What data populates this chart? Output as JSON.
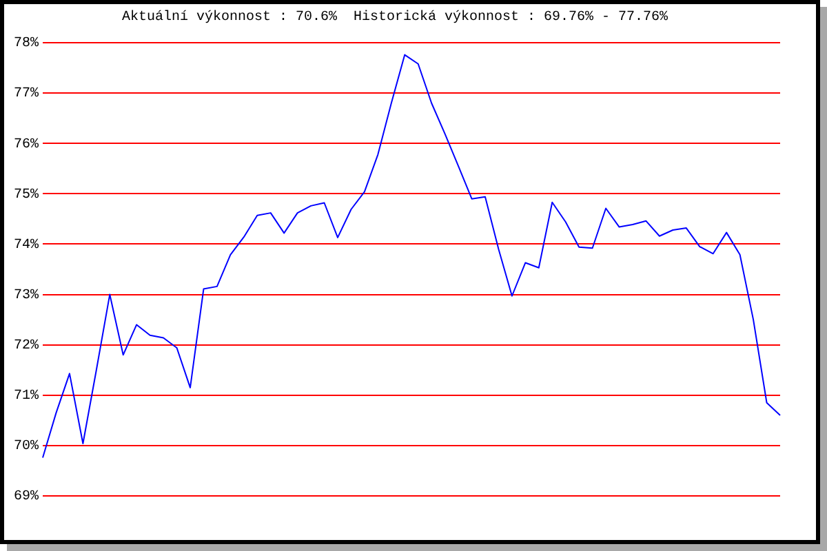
{
  "chart_data": {
    "type": "line",
    "title": "Aktuální výkonnost : 70.6%  Historická výkonnost : 69.76% - 77.76%",
    "categories": [
      null,
      null,
      null,
      null,
      null,
      null,
      null,
      null,
      null,
      null,
      null,
      null,
      null,
      null,
      null,
      null,
      null,
      null,
      null,
      null,
      null,
      null,
      null,
      null,
      null,
      null,
      null,
      null,
      null,
      null,
      null,
      null,
      null,
      null,
      null,
      null,
      null,
      null,
      null,
      null,
      null,
      null,
      null,
      null,
      null,
      null,
      null,
      null,
      null,
      null,
      null,
      null,
      null,
      null,
      null,
      null
    ],
    "series": [
      {
        "color": "#0000ff",
        "values": [
          69.76,
          70.65,
          71.43,
          70.04,
          71.5,
          73.0,
          71.8,
          72.4,
          72.19,
          72.14,
          71.94,
          71.15,
          73.11,
          73.16,
          73.79,
          74.14,
          74.57,
          74.62,
          74.22,
          74.62,
          74.76,
          74.82,
          74.13,
          74.69,
          75.04,
          75.78,
          76.8,
          77.76,
          77.58,
          76.8,
          76.19,
          75.55,
          74.9,
          74.94,
          73.9,
          72.97,
          73.63,
          73.53,
          74.83,
          74.44,
          73.94,
          73.92,
          74.71,
          74.34,
          74.39,
          74.46,
          74.16,
          74.28,
          74.32,
          73.95,
          73.81,
          74.23,
          73.79,
          72.5,
          70.85,
          70.6
        ]
      }
    ],
    "ylim": [
      69,
      78
    ],
    "yticks": [
      {
        "value": 69,
        "label": "69%"
      },
      {
        "value": 70,
        "label": "70%"
      },
      {
        "value": 71,
        "label": "71%"
      },
      {
        "value": 72,
        "label": "72%"
      },
      {
        "value": 73,
        "label": "73%"
      },
      {
        "value": 74,
        "label": "74%"
      },
      {
        "value": 75,
        "label": "75%"
      },
      {
        "value": 76,
        "label": "76%"
      },
      {
        "value": 77,
        "label": "77%"
      },
      {
        "value": 78,
        "label": "78%"
      }
    ],
    "grid": "y",
    "legend": false,
    "marker": "none",
    "tick_labels": "y"
  }
}
